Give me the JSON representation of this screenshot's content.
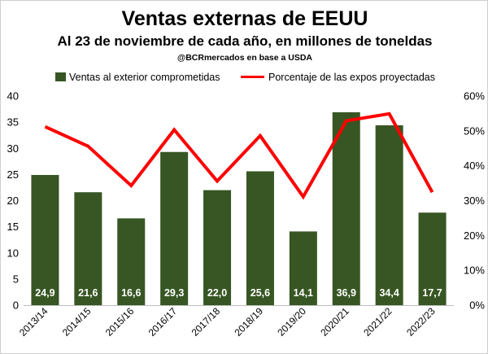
{
  "chart_data": {
    "type": "bar",
    "title": "Ventas externas de EEUU",
    "subtitle": "Al 23 de noviembre de cada año, en millones de toneldas",
    "source": "@BCRmercados en base a USDA",
    "categories": [
      "2013/14",
      "2014/15",
      "2015/16",
      "2016/17",
      "2017/18",
      "2018/19",
      "2019/20",
      "2020/21",
      "2021/22",
      "2022/23"
    ],
    "series": [
      {
        "name": "Ventas al exterior comprometidas",
        "type": "bar",
        "axis": "left",
        "values": [
          24.9,
          21.6,
          16.6,
          29.3,
          22.0,
          25.6,
          14.1,
          36.9,
          34.4,
          17.7
        ],
        "labels": [
          "24,9",
          "21,6",
          "16,6",
          "29,3",
          "22,0",
          "25,6",
          "14,1",
          "36,9",
          "34,4",
          "17,7"
        ],
        "color": "#375623"
      },
      {
        "name": "Porcentaje de las expos proyectadas",
        "type": "line",
        "axis": "right",
        "values": [
          51.2,
          45.6,
          34.3,
          50.3,
          35.6,
          48.6,
          31.1,
          52.9,
          54.9,
          32.4
        ],
        "color": "#ff0000"
      }
    ],
    "y_left": {
      "min": 0,
      "max": 40,
      "ticks": [
        "0",
        "5",
        "10",
        "15",
        "20",
        "25",
        "30",
        "35",
        "40"
      ]
    },
    "y_right": {
      "min": 0,
      "max": 60,
      "ticks": [
        "0%",
        "10%",
        "20%",
        "30%",
        "40%",
        "50%",
        "60%"
      ]
    },
    "grid": false,
    "legend": "top"
  }
}
